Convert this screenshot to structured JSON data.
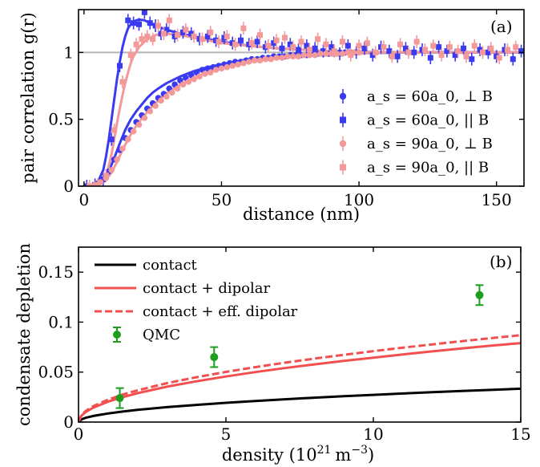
{
  "colors": {
    "blue": "#3a3af0",
    "pink": "#f39999",
    "red": "#f25050",
    "black": "#000000",
    "green": "#1e9e1e",
    "refline": "#b4b4b4"
  },
  "chart_data": [
    {
      "type": "scatter",
      "panel_label": "(a)",
      "xlabel": "distance (nm)",
      "ylabel": "pair correlation g(r)",
      "xlim": [
        -2,
        160
      ],
      "ylim": [
        0,
        1.32
      ],
      "xticks": [
        "0",
        "50",
        "100",
        "150"
      ],
      "yticks": [
        "0",
        "0.5",
        "1"
      ],
      "reference_line_y": 1,
      "legend_position": "bottom-right",
      "series": [
        {
          "name": "a_s = 60a_0, ⊥ B",
          "marker": "circle",
          "color": "blue",
          "x": [
            3,
            5,
            7,
            9,
            11,
            13,
            15,
            17,
            19,
            21,
            23,
            25,
            27,
            29,
            31,
            33,
            35,
            37,
            39,
            41,
            43,
            45,
            47,
            49,
            51,
            53,
            55,
            57,
            59,
            61,
            63,
            65,
            67,
            69,
            71,
            73,
            75,
            77,
            79,
            81,
            83,
            85,
            87,
            89,
            91,
            93,
            95,
            97,
            99
          ],
          "y": [
            0.0,
            0.02,
            0.05,
            0.11,
            0.2,
            0.27,
            0.36,
            0.42,
            0.48,
            0.53,
            0.58,
            0.62,
            0.66,
            0.69,
            0.73,
            0.76,
            0.79,
            0.81,
            0.83,
            0.85,
            0.87,
            0.88,
            0.89,
            0.9,
            0.91,
            0.92,
            0.93,
            0.93,
            0.94,
            0.95,
            0.95,
            0.96,
            0.96,
            0.97,
            0.97,
            0.97,
            0.98,
            0.98,
            0.98,
            0.98,
            0.99,
            0.99,
            0.99,
            0.99,
            0.99,
            1.0,
            1.0,
            1.0,
            1.0
          ]
        },
        {
          "name": "a_s = 60a_0, || B",
          "marker": "square",
          "color": "blue",
          "x": [
            1,
            4,
            7,
            10,
            13,
            16,
            18,
            20,
            22,
            24,
            26,
            28,
            30,
            33,
            36,
            39,
            42,
            45,
            48,
            51,
            54,
            57,
            60,
            63,
            66,
            69,
            72,
            75,
            78,
            81,
            84,
            87,
            90,
            93,
            96,
            99,
            102,
            105,
            108,
            111,
            114,
            117,
            120,
            123,
            126,
            129,
            132,
            135,
            138,
            141,
            144,
            147,
            150,
            153,
            156,
            159
          ],
          "y": [
            0.0,
            0.01,
            0.05,
            0.35,
            0.9,
            1.24,
            1.22,
            1.21,
            1.3,
            1.22,
            1.2,
            1.14,
            1.17,
            1.12,
            1.15,
            1.14,
            1.1,
            1.12,
            1.09,
            1.11,
            1.07,
            1.09,
            1.06,
            1.08,
            1.04,
            1.07,
            1.03,
            1.06,
            1.02,
            1.05,
            1.03,
            1.01,
            1.04,
            0.99,
            1.05,
            1.0,
            1.03,
            0.98,
            1.04,
            1.01,
            0.97,
            1.03,
            1.0,
            1.02,
            0.96,
            1.04,
            1.01,
            0.98,
            1.03,
            0.95,
            1.02,
            1.0,
            0.97,
            1.02,
            0.95,
            1.01
          ]
        },
        {
          "name": "a_s = 90a_0, ⊥ B",
          "marker": "circle",
          "color": "pink",
          "x": [
            4,
            6,
            8,
            10,
            12,
            14,
            16,
            18,
            20,
            22,
            24,
            26,
            28,
            30,
            32,
            34,
            36,
            38,
            40,
            42,
            44,
            46,
            48,
            50,
            52,
            54,
            56,
            58,
            60,
            62,
            64,
            66,
            68,
            70,
            72,
            74,
            76,
            78,
            80,
            82,
            84,
            86,
            88,
            90,
            92,
            94,
            96,
            98,
            100
          ],
          "y": [
            0.01,
            0.03,
            0.06,
            0.12,
            0.2,
            0.28,
            0.35,
            0.41,
            0.46,
            0.51,
            0.56,
            0.6,
            0.64,
            0.67,
            0.7,
            0.73,
            0.76,
            0.78,
            0.8,
            0.82,
            0.84,
            0.85,
            0.87,
            0.88,
            0.89,
            0.9,
            0.91,
            0.92,
            0.93,
            0.94,
            0.94,
            0.95,
            0.95,
            0.96,
            0.96,
            0.97,
            0.97,
            0.97,
            0.98,
            0.98,
            0.98,
            0.99,
            0.99,
            0.99,
            0.99,
            0.99,
            1.0,
            1.0,
            1.0
          ]
        },
        {
          "name": "a_s = 90a_0, || B",
          "marker": "square",
          "color": "pink",
          "x": [
            2,
            5,
            8,
            11,
            14,
            17,
            19,
            21,
            23,
            25,
            27,
            29,
            31,
            34,
            37,
            40,
            43,
            46,
            49,
            52,
            55,
            58,
            61,
            64,
            67,
            70,
            73,
            76,
            79,
            82,
            85,
            88,
            91,
            94,
            97,
            100,
            103,
            106,
            109,
            112,
            115,
            118,
            121,
            124,
            127,
            130,
            133,
            136,
            139,
            142,
            145,
            148,
            151,
            154,
            157
          ],
          "y": [
            0.0,
            0.01,
            0.08,
            0.42,
            0.78,
            0.98,
            1.06,
            1.1,
            1.12,
            1.1,
            1.2,
            1.14,
            1.24,
            1.13,
            1.17,
            1.12,
            1.1,
            1.15,
            1.08,
            1.12,
            1.06,
            1.18,
            1.07,
            1.13,
            1.05,
            1.09,
            1.11,
            1.04,
            1.08,
            1.02,
            1.1,
            1.06,
            1.01,
            1.08,
            0.98,
            1.05,
            1.07,
            1.0,
            1.04,
            0.97,
            1.06,
            1.0,
            1.08,
            1.02,
            1.05,
            0.98,
            1.04,
            1.01,
            0.97,
            1.05,
            1.0,
            1.03,
            0.96,
            1.02,
            1.04
          ]
        }
      ],
      "fit_curves": [
        {
          "color": "blue",
          "style": "solid",
          "x": [
            0,
            3,
            5,
            7,
            9,
            11,
            13,
            15,
            17,
            19,
            21,
            23,
            25,
            27,
            30,
            35,
            40,
            45,
            50,
            60,
            70,
            80,
            90,
            100,
            110,
            120,
            130,
            140,
            150,
            160
          ],
          "y": [
            0.0,
            0.0,
            0.01,
            0.04,
            0.11,
            0.21,
            0.32,
            0.42,
            0.5,
            0.56,
            0.61,
            0.66,
            0.7,
            0.73,
            0.77,
            0.82,
            0.86,
            0.89,
            0.91,
            0.95,
            0.97,
            0.98,
            0.99,
            0.995,
            0.998,
            1.0,
            1.0,
            1.0,
            1.0,
            1.0
          ]
        },
        {
          "color": "pink",
          "style": "solid",
          "x": [
            0,
            4,
            6,
            8,
            10,
            12,
            14,
            16,
            18,
            20,
            22,
            24,
            26,
            28,
            31,
            36,
            41,
            46,
            51,
            60,
            70,
            80,
            90,
            100,
            110,
            120,
            130,
            140,
            150,
            160
          ],
          "y": [
            0.0,
            0.0,
            0.02,
            0.05,
            0.1,
            0.18,
            0.27,
            0.35,
            0.42,
            0.48,
            0.53,
            0.58,
            0.62,
            0.66,
            0.71,
            0.77,
            0.82,
            0.86,
            0.89,
            0.93,
            0.96,
            0.98,
            0.99,
            0.99,
            1.0,
            1.0,
            1.0,
            1.0,
            1.0,
            1.0
          ]
        },
        {
          "color": "blue",
          "style": "solid",
          "x": [
            0,
            3,
            5,
            7,
            8,
            9,
            10,
            11,
            12,
            13,
            14,
            15,
            16,
            17,
            18,
            19,
            20,
            22,
            24,
            26,
            30,
            35,
            40,
            45,
            50,
            60,
            70,
            80,
            90,
            100,
            110,
            120,
            130,
            140,
            150,
            160
          ],
          "y": [
            0.0,
            0.0,
            0.03,
            0.12,
            0.22,
            0.35,
            0.5,
            0.65,
            0.8,
            0.93,
            1.04,
            1.12,
            1.18,
            1.21,
            1.23,
            1.24,
            1.245,
            1.24,
            1.22,
            1.2,
            1.17,
            1.14,
            1.12,
            1.1,
            1.08,
            1.05,
            1.03,
            1.02,
            1.01,
            1.005,
            1.0,
            1.0,
            1.0,
            1.0,
            1.0,
            1.0
          ]
        },
        {
          "color": "pink",
          "style": "solid",
          "x": [
            0,
            4,
            6,
            8,
            9,
            10,
            11,
            12,
            13,
            14,
            15,
            16,
            17,
            18,
            20,
            22,
            24,
            26,
            28,
            30,
            35,
            40,
            45,
            50,
            60,
            70,
            80,
            90,
            100,
            110,
            120,
            130,
            140,
            150,
            160
          ],
          "y": [
            0.0,
            0.0,
            0.02,
            0.08,
            0.15,
            0.24,
            0.35,
            0.47,
            0.58,
            0.68,
            0.77,
            0.85,
            0.92,
            0.97,
            1.04,
            1.08,
            1.11,
            1.13,
            1.14,
            1.14,
            1.13,
            1.11,
            1.09,
            1.07,
            1.05,
            1.03,
            1.02,
            1.01,
            1.005,
            1.0,
            1.0,
            1.0,
            1.0,
            1.0,
            1.0
          ]
        }
      ]
    },
    {
      "type": "line",
      "panel_label": "(b)",
      "xlabel": "density (10",
      "xlabel_sup": "21",
      "xlabel_unit": "m",
      "xlabel_unit_sup": "−3",
      "xlabel_close": ")",
      "ylabel": "condensate depletion",
      "xlim": [
        0,
        15
      ],
      "ylim": [
        0,
        0.175
      ],
      "xticks": [
        "0",
        "5",
        "10",
        "15"
      ],
      "yticks": [
        "0",
        "0.05",
        "0.1",
        "0.15"
      ],
      "legend_position": "top-left",
      "series": [
        {
          "name": "contact",
          "color": "black",
          "style": "solid",
          "x": [
            0,
            0.1,
            0.25,
            0.5,
            1,
            1.5,
            2,
            3,
            4,
            5,
            6,
            7,
            8,
            9,
            10,
            11,
            12,
            13,
            14,
            15
          ],
          "y": [
            0,
            0.0027,
            0.0043,
            0.0061,
            0.0086,
            0.0105,
            0.0122,
            0.0149,
            0.0172,
            0.0193,
            0.0211,
            0.0228,
            0.0244,
            0.0259,
            0.0272,
            0.0286,
            0.0299,
            0.0311,
            0.0322,
            0.0334
          ]
        },
        {
          "name": "contact + dipolar",
          "color": "red",
          "style": "solid",
          "x": [
            0,
            0.1,
            0.25,
            0.5,
            1,
            1.5,
            2,
            3,
            4,
            5,
            6,
            7,
            8,
            9,
            10,
            11,
            12,
            13,
            14,
            15
          ],
          "y": [
            0,
            0.0064,
            0.0102,
            0.0144,
            0.0204,
            0.025,
            0.0289,
            0.0354,
            0.0408,
            0.0456,
            0.05,
            0.054,
            0.0577,
            0.0612,
            0.0645,
            0.0677,
            0.0707,
            0.0736,
            0.0764,
            0.079
          ]
        },
        {
          "name": "contact + eff. dipolar",
          "color": "red",
          "style": "dashed",
          "x": [
            0,
            0.1,
            0.25,
            0.5,
            1,
            1.5,
            2,
            3,
            4,
            5,
            6,
            7,
            8,
            9,
            10,
            11,
            12,
            13,
            14,
            15
          ],
          "y": [
            0,
            0.0071,
            0.0112,
            0.0159,
            0.0224,
            0.0275,
            0.0317,
            0.0389,
            0.0449,
            0.0502,
            0.055,
            0.0594,
            0.0635,
            0.0673,
            0.071,
            0.0744,
            0.0777,
            0.0809,
            0.084,
            0.0869
          ]
        }
      ],
      "points": {
        "name": "QMC",
        "color": "green",
        "marker": "circle",
        "x": [
          1.4,
          4.6,
          13.6
        ],
        "y": [
          0.024,
          0.065,
          0.127
        ],
        "err": [
          0.01,
          0.01,
          0.01
        ]
      }
    }
  ]
}
